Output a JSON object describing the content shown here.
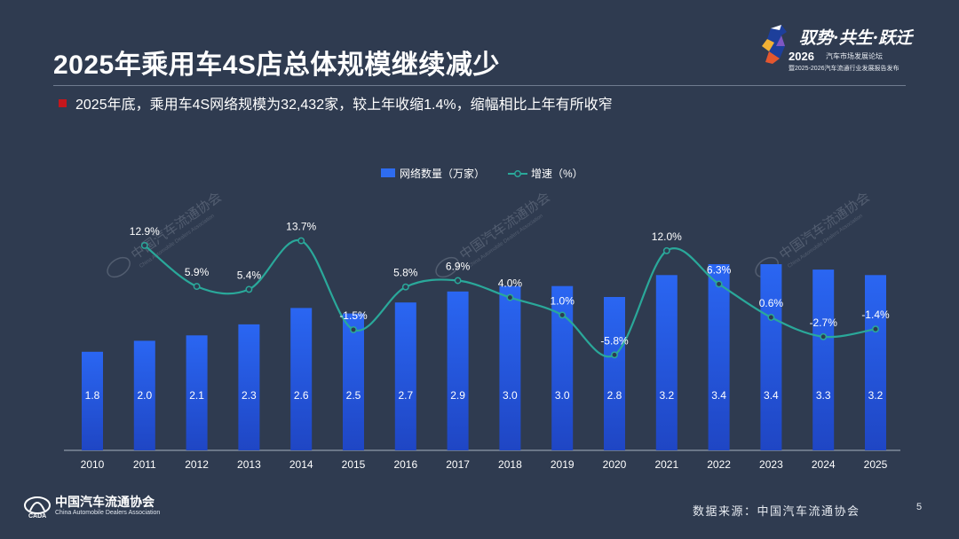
{
  "header": {
    "title": "2025年乘用车4S店总体规模继续减少",
    "subtitle": "2025年底，乘用车4S网络规模为32,432家，较上年收缩1.4%，缩幅相比上年有所收窄"
  },
  "event_logo": {
    "slogan": "驭势·共生·跃迁",
    "year": "2026",
    "forum": "汽车市场发展论坛",
    "release": "暨2025-2026汽车流通行业发展报告发布"
  },
  "chart_data": {
    "type": "bar",
    "categories": [
      "2010",
      "2011",
      "2012",
      "2013",
      "2014",
      "2015",
      "2016",
      "2017",
      "2018",
      "2019",
      "2020",
      "2021",
      "2022",
      "2023",
      "2024",
      "2025"
    ],
    "series": [
      {
        "name": "网络数量（万家）",
        "type": "bar",
        "values": [
          1.8,
          2.0,
          2.1,
          2.3,
          2.6,
          2.5,
          2.7,
          2.9,
          3.0,
          3.0,
          2.8,
          3.2,
          3.4,
          3.4,
          3.3,
          3.2
        ],
        "color": "#2e6cf0"
      },
      {
        "name": "增速（%）",
        "type": "line",
        "values": [
          null,
          12.9,
          5.9,
          5.4,
          13.7,
          -1.5,
          5.8,
          6.9,
          4.0,
          1.0,
          -5.8,
          12.0,
          6.3,
          0.6,
          -2.7,
          -1.4
        ],
        "color": "#2aa89a"
      }
    ],
    "bar_labels": [
      "1.8",
      "2.0",
      "2.1",
      "2.3",
      "2.6",
      "2.5",
      "2.7",
      "2.9",
      "3.0",
      "3.0",
      "2.8",
      "3.2",
      "3.4",
      "3.4",
      "3.3",
      "3.2"
    ],
    "line_labels": [
      "",
      "12.9%",
      "5.9%",
      "5.4%",
      "13.7%",
      "-1.5%",
      "5.8%",
      "6.9%",
      "4.0%",
      "1.0%",
      "-5.8%",
      "12.0%",
      "6.3%",
      "0.6%",
      "-2.7%",
      "-1.4%"
    ],
    "legend": {
      "bar": "网络数量（万家）",
      "line": "增速（%）",
      "position": "top"
    },
    "bar_axis_range": [
      0,
      4.5
    ],
    "line_axis_range": [
      -30,
      20
    ],
    "grid": false
  },
  "watermark": {
    "cn": "中国汽车流通协会",
    "en": "China Automobile Dealers Association"
  },
  "footer": {
    "org_cn": "中国汽车流通协会",
    "org_en": "China Automobile Dealers Association",
    "source": "数据来源：中国汽车流通协会",
    "page": "5"
  }
}
